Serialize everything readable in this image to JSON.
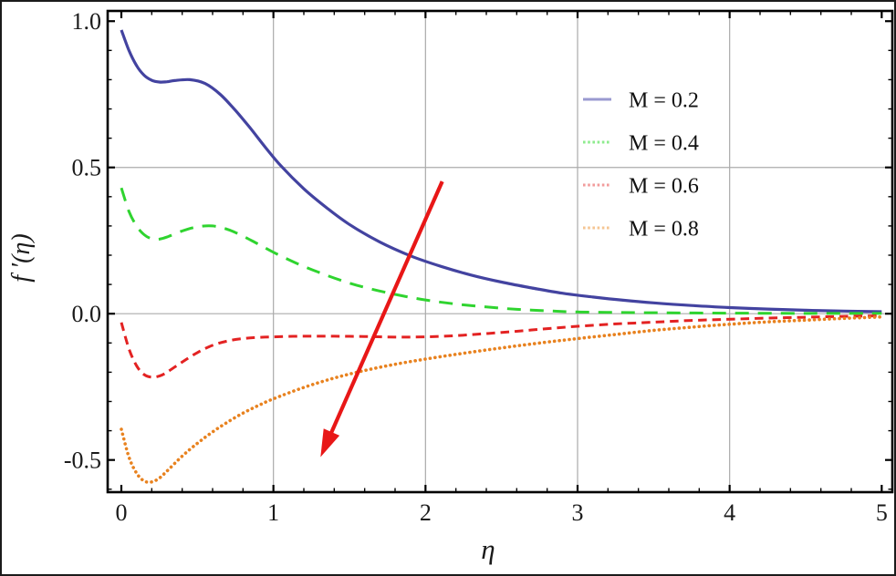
{
  "figure": {
    "background": "#ffffff",
    "border_color": "#1b1b1b"
  },
  "chart_data": {
    "type": "line",
    "title": "",
    "xlabel": "η",
    "ylabel": "f ′(η)",
    "xlim": [
      -0.09,
      5.07
    ],
    "ylim": [
      -0.61,
      1.035
    ],
    "x_ticks": [
      0,
      1,
      2,
      3,
      4,
      5
    ],
    "x_tick_labels": [
      "0",
      "1",
      "2",
      "3",
      "4",
      "5"
    ],
    "y_ticks": [
      -0.5,
      0.0,
      0.5,
      1.0
    ],
    "y_tick_labels": [
      "-0.5",
      "0.0",
      "0.5",
      "1.0"
    ],
    "x_minor_tick_step": 0.2,
    "y_minor_tick_step": 0.1,
    "grid": {
      "x_values": [
        1,
        2,
        3,
        4
      ],
      "y_values": [
        0.0,
        0.5
      ],
      "color": "#ababab"
    },
    "axis_color": "#000000",
    "text_color": "#1a1a1a",
    "legend": {
      "position": "upper-right",
      "frame": false
    },
    "series": [
      {
        "name": "M = 0.2",
        "color": "#4343a0",
        "legend_swatch_color": "#9a9ad0",
        "line_style": "solid",
        "points": [
          [
            0,
            0.97
          ],
          [
            0.05,
            0.9
          ],
          [
            0.1,
            0.848
          ],
          [
            0.15,
            0.815
          ],
          [
            0.2,
            0.798
          ],
          [
            0.25,
            0.792
          ],
          [
            0.3,
            0.793
          ],
          [
            0.35,
            0.797
          ],
          [
            0.45,
            0.8
          ],
          [
            0.55,
            0.787
          ],
          [
            0.65,
            0.75
          ],
          [
            0.75,
            0.695
          ],
          [
            0.85,
            0.633
          ],
          [
            0.95,
            0.567
          ],
          [
            1.05,
            0.505
          ],
          [
            1.2,
            0.427
          ],
          [
            1.35,
            0.362
          ],
          [
            1.5,
            0.305
          ],
          [
            1.7,
            0.245
          ],
          [
            1.9,
            0.198
          ],
          [
            2.1,
            0.162
          ],
          [
            2.3,
            0.132
          ],
          [
            2.5,
            0.108
          ],
          [
            2.7,
            0.088
          ],
          [
            2.9,
            0.07
          ],
          [
            3.1,
            0.057
          ],
          [
            3.3,
            0.046
          ],
          [
            3.5,
            0.037
          ],
          [
            3.75,
            0.028
          ],
          [
            4,
            0.021
          ],
          [
            4.25,
            0.016
          ],
          [
            4.5,
            0.012
          ],
          [
            4.75,
            0.009
          ],
          [
            5,
            0.007
          ]
        ]
      },
      {
        "name": "M = 0.4",
        "color": "#2fd42f",
        "legend_swatch_color": "#8deb8d",
        "line_style": "long-dash",
        "points": [
          [
            0,
            0.43
          ],
          [
            0.05,
            0.35
          ],
          [
            0.1,
            0.3
          ],
          [
            0.15,
            0.27
          ],
          [
            0.2,
            0.256
          ],
          [
            0.25,
            0.255
          ],
          [
            0.3,
            0.262
          ],
          [
            0.4,
            0.283
          ],
          [
            0.5,
            0.297
          ],
          [
            0.6,
            0.3
          ],
          [
            0.7,
            0.288
          ],
          [
            0.8,
            0.265
          ],
          [
            0.9,
            0.238
          ],
          [
            1.0,
            0.21
          ],
          [
            1.15,
            0.173
          ],
          [
            1.3,
            0.141
          ],
          [
            1.45,
            0.113
          ],
          [
            1.6,
            0.09
          ],
          [
            1.8,
            0.066
          ],
          [
            2.0,
            0.047
          ],
          [
            2.2,
            0.033
          ],
          [
            2.4,
            0.023
          ],
          [
            2.6,
            0.015
          ],
          [
            2.8,
            0.01
          ],
          [
            3.0,
            0.006
          ],
          [
            3.3,
            0.004
          ],
          [
            3.6,
            0.003
          ],
          [
            4.0,
            0.002
          ],
          [
            4.5,
            0.001
          ],
          [
            5.0,
            0.001
          ]
        ]
      },
      {
        "name": "M = 0.6",
        "color": "#e32222",
        "legend_swatch_color": "#f29b9b",
        "line_style": "dash",
        "points": [
          [
            0,
            -0.03
          ],
          [
            0.05,
            -0.12
          ],
          [
            0.1,
            -0.178
          ],
          [
            0.15,
            -0.208
          ],
          [
            0.2,
            -0.217
          ],
          [
            0.25,
            -0.213
          ],
          [
            0.3,
            -0.2
          ],
          [
            0.4,
            -0.165
          ],
          [
            0.5,
            -0.133
          ],
          [
            0.6,
            -0.108
          ],
          [
            0.7,
            -0.093
          ],
          [
            0.8,
            -0.085
          ],
          [
            0.9,
            -0.081
          ],
          [
            1.0,
            -0.079
          ],
          [
            1.2,
            -0.077
          ],
          [
            1.4,
            -0.077
          ],
          [
            1.6,
            -0.078
          ],
          [
            1.8,
            -0.08
          ],
          [
            2.0,
            -0.079
          ],
          [
            2.2,
            -0.075
          ],
          [
            2.4,
            -0.068
          ],
          [
            2.6,
            -0.06
          ],
          [
            2.8,
            -0.051
          ],
          [
            3.0,
            -0.043
          ],
          [
            3.25,
            -0.035
          ],
          [
            3.5,
            -0.029
          ],
          [
            3.75,
            -0.023
          ],
          [
            4.0,
            -0.019
          ],
          [
            4.25,
            -0.015
          ],
          [
            4.5,
            -0.012
          ],
          [
            4.75,
            -0.009
          ],
          [
            5.0,
            -0.007
          ]
        ]
      },
      {
        "name": "M = 0.8",
        "color": "#e8821f",
        "legend_swatch_color": "#f5c592",
        "line_style": "dot",
        "points": [
          [
            0,
            -0.395
          ],
          [
            0.05,
            -0.49
          ],
          [
            0.1,
            -0.545
          ],
          [
            0.15,
            -0.572
          ],
          [
            0.2,
            -0.575
          ],
          [
            0.25,
            -0.562
          ],
          [
            0.3,
            -0.538
          ],
          [
            0.4,
            -0.487
          ],
          [
            0.5,
            -0.443
          ],
          [
            0.6,
            -0.404
          ],
          [
            0.7,
            -0.37
          ],
          [
            0.8,
            -0.34
          ],
          [
            0.9,
            -0.314
          ],
          [
            1.0,
            -0.291
          ],
          [
            1.2,
            -0.252
          ],
          [
            1.4,
            -0.22
          ],
          [
            1.6,
            -0.194
          ],
          [
            1.8,
            -0.173
          ],
          [
            2.0,
            -0.155
          ],
          [
            2.2,
            -0.139
          ],
          [
            2.4,
            -0.124
          ],
          [
            2.6,
            -0.11
          ],
          [
            2.8,
            -0.097
          ],
          [
            3.0,
            -0.085
          ],
          [
            3.25,
            -0.071
          ],
          [
            3.5,
            -0.057
          ],
          [
            3.75,
            -0.046
          ],
          [
            4.0,
            -0.036
          ],
          [
            4.25,
            -0.028
          ],
          [
            4.5,
            -0.022
          ],
          [
            4.75,
            -0.016
          ],
          [
            5.0,
            -0.011
          ]
        ]
      }
    ],
    "annotation_arrow": {
      "from_xy": [
        2.11,
        0.452
      ],
      "to_xy": [
        1.31,
        -0.49
      ],
      "color": "#e81717"
    }
  }
}
